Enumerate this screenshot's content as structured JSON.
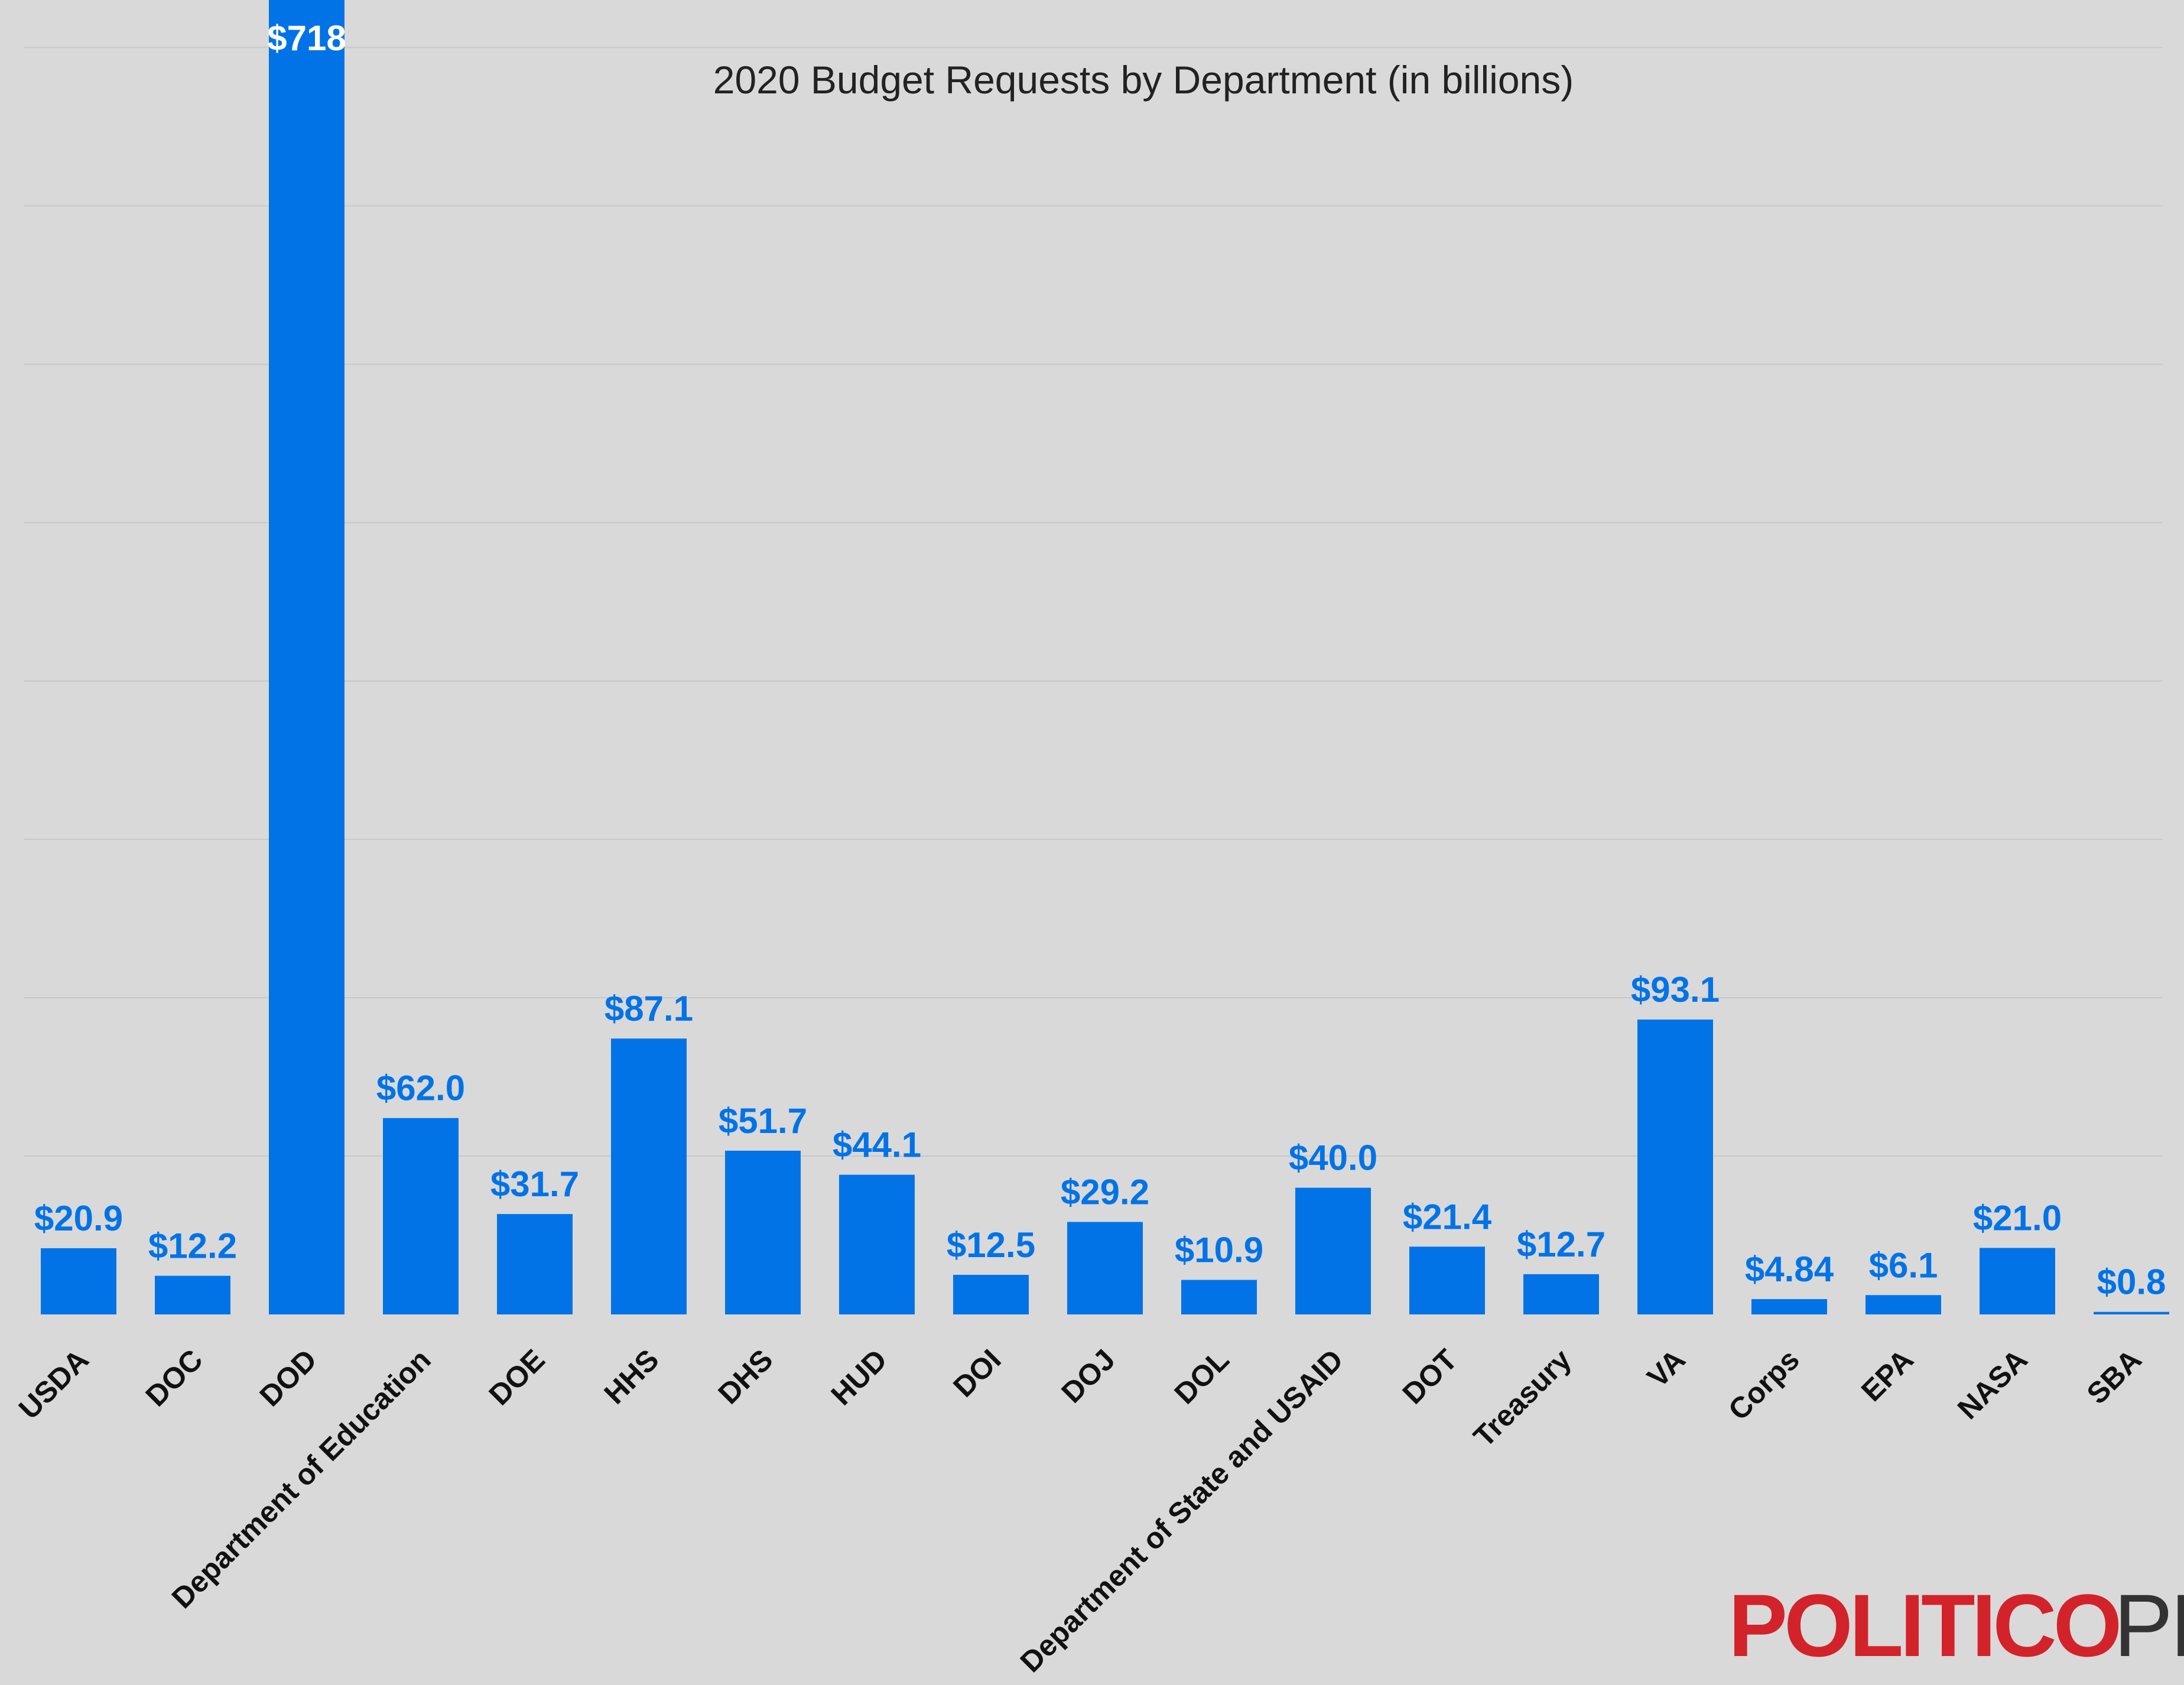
{
  "chart_data": {
    "type": "bar",
    "title": "2020 Budget Requests by Department (in billions)",
    "xlabel": "",
    "ylabel": "",
    "categories": [
      "USDA",
      "DOC",
      "DOD",
      "Department of Education",
      "DOE",
      "HHS",
      "DHS",
      "HUD",
      "DOI",
      "DOJ",
      "DOL",
      "Department of State and USAID",
      "DOT",
      "Treasury",
      "VA",
      "Corps",
      "EPA",
      "NASA",
      "SBA"
    ],
    "values": [
      20.9,
      12.2,
      718,
      62.0,
      31.7,
      87.1,
      51.7,
      44.1,
      12.5,
      29.2,
      10.9,
      40.0,
      21.4,
      12.7,
      93.1,
      4.84,
      6.1,
      21.0,
      0.8
    ],
    "value_labels": [
      "$20.9",
      "$12.2",
      "$718",
      "$62.0",
      "$31.7",
      "$87.1",
      "$51.7",
      "$44.1",
      "$12.5",
      "$29.2",
      "$10.9",
      "$40.0",
      "$21.4",
      "$12.7",
      "$93.1",
      "$4.84",
      "$6.1",
      "$21.0",
      "$0.8"
    ],
    "ylim": [
      0,
      415
    ],
    "grid": true,
    "legend": "none",
    "colors": {
      "bar": "#0273e6",
      "background": "#d9d9d9",
      "grid": "#c8c8c8"
    }
  },
  "logo": {
    "text_left": "POLITICO",
    "text_right": "PRO",
    "color_left": "#d2232a",
    "color_right": "#333333"
  }
}
